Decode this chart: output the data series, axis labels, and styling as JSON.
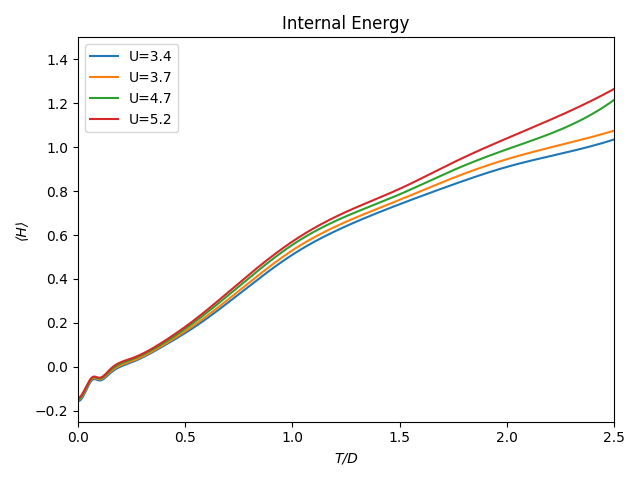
{
  "title": "Internal Energy",
  "xlabel": "T/D",
  "ylabel": "⟨H⟩",
  "xlim": [
    0,
    2.5
  ],
  "ylim": [
    -0.25,
    1.5
  ],
  "yticks": [
    -0.2,
    0.0,
    0.2,
    0.4,
    0.6,
    0.8,
    1.0,
    1.2,
    1.4
  ],
  "xticks": [
    0.0,
    0.5,
    1.0,
    1.5,
    2.0,
    2.5
  ],
  "series": [
    {
      "label": "U=3.4",
      "color": "#1f77b4",
      "ctrl_T": [
        0.0,
        0.03,
        0.07,
        0.1,
        0.15,
        0.25,
        0.4,
        0.55,
        0.75,
        1.0,
        1.25,
        1.5,
        1.75,
        2.0,
        2.25,
        2.5
      ],
      "ctrl_E": [
        -0.155,
        -0.125,
        -0.058,
        -0.062,
        -0.03,
        0.02,
        0.095,
        0.185,
        0.33,
        0.51,
        0.64,
        0.74,
        0.83,
        0.91,
        0.97,
        1.035
      ]
    },
    {
      "label": "U=3.7",
      "color": "#ff7f0e",
      "ctrl_T": [
        0.0,
        0.03,
        0.07,
        0.1,
        0.15,
        0.25,
        0.4,
        0.55,
        0.75,
        1.0,
        1.25,
        1.5,
        1.75,
        2.0,
        2.25,
        2.5
      ],
      "ctrl_E": [
        -0.15,
        -0.118,
        -0.053,
        -0.057,
        -0.024,
        0.025,
        0.1,
        0.195,
        0.345,
        0.53,
        0.66,
        0.76,
        0.86,
        0.945,
        1.01,
        1.075
      ]
    },
    {
      "label": "U=4.7",
      "color": "#2ca02c",
      "ctrl_T": [
        0.0,
        0.03,
        0.07,
        0.1,
        0.15,
        0.25,
        0.4,
        0.55,
        0.75,
        1.0,
        1.25,
        1.5,
        1.75,
        2.0,
        2.25,
        2.5
      ],
      "ctrl_E": [
        -0.148,
        -0.113,
        -0.049,
        -0.053,
        -0.018,
        0.033,
        0.108,
        0.208,
        0.365,
        0.555,
        0.685,
        0.785,
        0.895,
        0.99,
        1.08,
        1.215
      ]
    },
    {
      "label": "U=5.2",
      "color": "#d62728",
      "ctrl_T": [
        0.0,
        0.03,
        0.07,
        0.1,
        0.15,
        0.25,
        0.4,
        0.55,
        0.75,
        1.0,
        1.25,
        1.5,
        1.75,
        2.0,
        2.25,
        2.5
      ],
      "ctrl_E": [
        -0.142,
        -0.108,
        -0.046,
        -0.05,
        -0.012,
        0.038,
        0.115,
        0.218,
        0.38,
        0.57,
        0.705,
        0.81,
        0.93,
        1.04,
        1.145,
        1.265
      ]
    }
  ],
  "figsize": [
    6.4,
    4.8
  ],
  "dpi": 100
}
